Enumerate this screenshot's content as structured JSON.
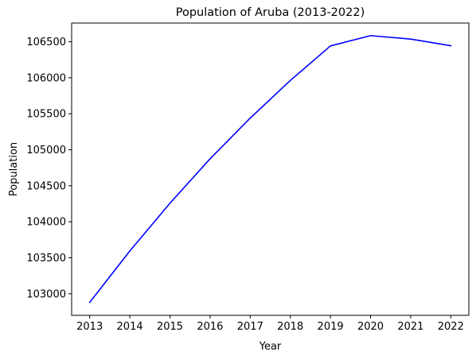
{
  "chart_data": {
    "type": "line",
    "title": "Population of Aruba (2013-2022)",
    "xlabel": "Year",
    "ylabel": "Population",
    "x": [
      2013,
      2014,
      2015,
      2016,
      2017,
      2018,
      2019,
      2020,
      2021,
      2022
    ],
    "series": [
      {
        "values": [
          102880,
          103594,
          104257,
          104874,
          105439,
          105962,
          106442,
          106585,
          106537,
          106445
        ],
        "color": "#0000ff"
      }
    ],
    "xlim": [
      2012.55,
      2022.45
    ],
    "ylim": [
      102700,
      106760
    ],
    "x_ticks": [
      2013,
      2014,
      2015,
      2016,
      2017,
      2018,
      2019,
      2020,
      2021,
      2022
    ],
    "y_ticks": [
      103000,
      103500,
      104000,
      104500,
      105000,
      105500,
      106000,
      106500
    ],
    "grid": false,
    "legend": "none"
  }
}
